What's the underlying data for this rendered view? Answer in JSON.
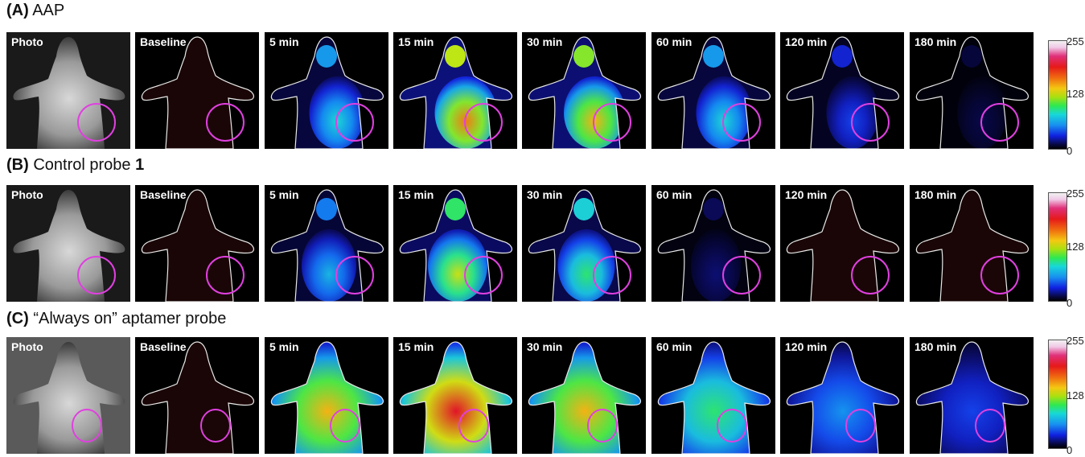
{
  "rows": [
    {
      "title_prefix": "(A)",
      "title_text": " AAP",
      "title_bold_tail": ""
    },
    {
      "title_prefix": "(B)",
      "title_text": " Control probe ",
      "title_bold_tail": "1"
    },
    {
      "title_prefix": "(C)",
      "title_text": " “Always on” aptamer probe",
      "title_bold_tail": ""
    }
  ],
  "panel_labels": [
    "Photo",
    "Baseline",
    "5 min",
    "15 min",
    "30 min",
    "60 min",
    "120 min",
    "180 min"
  ],
  "colorbar": {
    "max_label": "255",
    "mid_label": "128",
    "min_label": "0"
  },
  "intensity": {
    "A": [
      0,
      0,
      0.45,
      0.85,
      0.8,
      0.45,
      0.25,
      0.08
    ],
    "B": [
      0,
      0,
      0.4,
      0.7,
      0.55,
      0.12,
      0.02,
      0.02
    ],
    "C": [
      0,
      0,
      0.8,
      0.95,
      0.8,
      0.55,
      0.35,
      0.25
    ]
  },
  "colors": {
    "roi_circle": "#e040e0",
    "outline": "#e8e8e8"
  }
}
